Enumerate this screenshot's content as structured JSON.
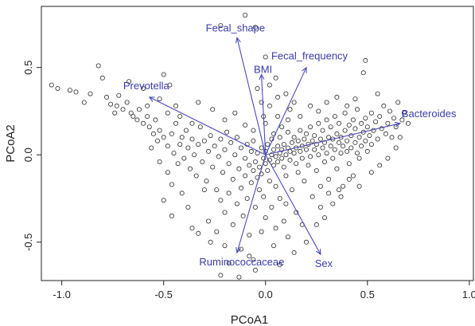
{
  "chart_data": {
    "type": "scatter",
    "title": "",
    "xlabel": "PCoA1",
    "ylabel": "PCoA2",
    "xlim": [
      -1.1,
      1.02
    ],
    "ylim": [
      -0.72,
      0.85
    ],
    "x_ticks": [
      "-1.0",
      "-0.5",
      "0.0",
      "0.5",
      "1.0"
    ],
    "y_ticks": [
      "-0.5",
      "0.0",
      "0.5"
    ],
    "grid": false,
    "colors": {
      "points": "#2b2b2b",
      "arrows": "#4a4ab8",
      "labels": "#3a3aa8"
    },
    "arrows": [
      {
        "name": "Fecal_shape",
        "x": -0.14,
        "y": 0.67
      },
      {
        "name": "BMI",
        "x": -0.02,
        "y": 0.46
      },
      {
        "name": "Fecal_frequency",
        "x": 0.2,
        "y": 0.5
      },
      {
        "name": "Prevotella",
        "x": -0.57,
        "y": 0.33
      },
      {
        "name": "Bacteroides",
        "x": 0.66,
        "y": 0.18
      },
      {
        "name": "Ruminococcaceae",
        "x": -0.14,
        "y": -0.56
      },
      {
        "name": "Sex",
        "x": 0.27,
        "y": -0.57
      }
    ],
    "points": [
      [
        -1.05,
        0.4
      ],
      [
        -1.02,
        0.38
      ],
      [
        -0.96,
        0.37
      ],
      [
        -0.93,
        0.36
      ],
      [
        -0.89,
        0.3
      ],
      [
        -0.86,
        0.35
      ],
      [
        -0.82,
        0.51
      ],
      [
        -0.8,
        0.44
      ],
      [
        -0.78,
        0.33
      ],
      [
        -0.76,
        0.29
      ],
      [
        -0.73,
        0.28
      ],
      [
        -0.72,
        0.34
      ],
      [
        -0.7,
        0.26
      ],
      [
        -0.68,
        0.3
      ],
      [
        -0.66,
        0.24
      ],
      [
        -0.65,
        0.22
      ],
      [
        -0.63,
        0.2
      ],
      [
        -0.62,
        0.26
      ],
      [
        -0.6,
        0.18
      ],
      [
        -0.58,
        0.22
      ],
      [
        -0.57,
        0.16
      ],
      [
        -0.55,
        0.12
      ],
      [
        -0.54,
        0.2
      ],
      [
        -0.53,
        0.08
      ],
      [
        -0.52,
        0.14
      ],
      [
        -0.5,
        0.1
      ],
      [
        -0.5,
        0.46
      ],
      [
        -0.48,
        0.05
      ],
      [
        -0.47,
        0.4
      ],
      [
        -0.46,
        0.12
      ],
      [
        -0.45,
        0.01
      ],
      [
        -0.44,
        0.18
      ],
      [
        -0.43,
        -0.05
      ],
      [
        -0.42,
        0.06
      ],
      [
        -0.41,
        0.1
      ],
      [
        -0.4,
        -0.02
      ],
      [
        -0.39,
        0.14
      ],
      [
        -0.38,
        0.04
      ],
      [
        -0.37,
        -0.08
      ],
      [
        -0.36,
        0.09
      ],
      [
        -0.35,
        0.0
      ],
      [
        -0.34,
        -0.12
      ],
      [
        -0.33,
        0.06
      ],
      [
        -0.32,
        0.16
      ],
      [
        -0.31,
        -0.04
      ],
      [
        -0.3,
        0.08
      ],
      [
        -0.29,
        -0.15
      ],
      [
        -0.28,
        0.02
      ],
      [
        -0.27,
        0.11
      ],
      [
        -0.26,
        -0.07
      ],
      [
        -0.25,
        0.05
      ],
      [
        -0.24,
        -0.2
      ],
      [
        -0.23,
        -0.01
      ],
      [
        -0.22,
        0.09
      ],
      [
        -0.22,
        -0.26
      ],
      [
        -0.21,
        -0.1
      ],
      [
        -0.2,
        0.03
      ],
      [
        -0.2,
        -0.33
      ],
      [
        -0.19,
        0.13
      ],
      [
        -0.18,
        -0.05
      ],
      [
        -0.18,
        -0.22
      ],
      [
        -0.17,
        0.07
      ],
      [
        -0.16,
        -0.14
      ],
      [
        -0.16,
        -0.4
      ],
      [
        -0.15,
        0.0
      ],
      [
        -0.14,
        -0.28
      ],
      [
        -0.14,
        0.1
      ],
      [
        -0.13,
        -0.08
      ],
      [
        -0.12,
        -0.19
      ],
      [
        -0.12,
        0.04
      ],
      [
        -0.11,
        -0.35
      ],
      [
        -0.1,
        -0.02
      ],
      [
        -0.1,
        -0.12
      ],
      [
        -0.09,
        0.06
      ],
      [
        -0.09,
        -0.25
      ],
      [
        -0.08,
        -0.06
      ],
      [
        -0.08,
        -0.46
      ],
      [
        -0.07,
        0.02
      ],
      [
        -0.07,
        -0.16
      ],
      [
        -0.06,
        -0.09
      ],
      [
        -0.06,
        0.08
      ],
      [
        -0.05,
        -0.3
      ],
      [
        -0.05,
        -0.04
      ],
      [
        -0.04,
        -0.13
      ],
      [
        -0.04,
        0.01
      ],
      [
        -0.03,
        -0.2
      ],
      [
        -0.03,
        -0.07
      ],
      [
        -0.02,
        0.04
      ],
      [
        -0.02,
        -0.11
      ],
      [
        -0.01,
        -0.02
      ],
      [
        -0.01,
        -0.24
      ],
      [
        0.0,
        -0.05
      ],
      [
        0.0,
        0.02
      ],
      [
        0.01,
        -0.09
      ],
      [
        0.01,
        0.06
      ],
      [
        0.02,
        -0.03
      ],
      [
        0.02,
        -0.15
      ],
      [
        0.03,
        0.0
      ],
      [
        0.03,
        0.09
      ],
      [
        0.04,
        -0.06
      ],
      [
        0.04,
        0.03
      ],
      [
        0.05,
        -0.01
      ],
      [
        0.05,
        -0.18
      ],
      [
        0.06,
        0.05
      ],
      [
        0.06,
        -0.04
      ],
      [
        0.07,
        0.01
      ],
      [
        0.07,
        0.1
      ],
      [
        0.08,
        -0.02
      ],
      [
        0.08,
        0.03
      ],
      [
        0.09,
        -0.07
      ],
      [
        0.09,
        0.06
      ],
      [
        0.1,
        0.0
      ],
      [
        0.1,
        -0.12
      ],
      [
        0.11,
        0.04
      ],
      [
        0.11,
        0.13
      ],
      [
        0.12,
        -0.03
      ],
      [
        0.12,
        0.02
      ],
      [
        0.13,
        0.07
      ],
      [
        0.13,
        -0.2
      ],
      [
        0.14,
        0.01
      ],
      [
        0.14,
        0.1
      ],
      [
        0.15,
        -0.05
      ],
      [
        0.15,
        0.04
      ],
      [
        0.16,
        0.08
      ],
      [
        0.16,
        -0.1
      ],
      [
        0.17,
        0.02
      ],
      [
        0.17,
        0.14
      ],
      [
        0.18,
        -0.02
      ],
      [
        0.18,
        0.05
      ],
      [
        0.19,
        0.09
      ],
      [
        0.19,
        -0.15
      ],
      [
        0.2,
        0.03
      ],
      [
        0.2,
        0.12
      ],
      [
        0.21,
        -0.06
      ],
      [
        0.21,
        0.06
      ],
      [
        0.22,
        0.16
      ],
      [
        0.22,
        -0.01
      ],
      [
        0.23,
        0.08
      ],
      [
        0.23,
        -0.24
      ],
      [
        0.24,
        0.03
      ],
      [
        0.24,
        0.11
      ],
      [
        0.25,
        -0.09
      ],
      [
        0.25,
        0.06
      ],
      [
        0.26,
        0.18
      ],
      [
        0.26,
        0.0
      ],
      [
        0.27,
        0.09
      ],
      [
        0.27,
        -0.3
      ],
      [
        0.28,
        0.04
      ],
      [
        0.28,
        0.14
      ],
      [
        0.29,
        -0.04
      ],
      [
        0.29,
        0.07
      ],
      [
        0.3,
        0.2
      ],
      [
        0.3,
        0.01
      ],
      [
        0.31,
        0.1
      ],
      [
        0.31,
        -0.14
      ],
      [
        0.32,
        0.05
      ],
      [
        0.32,
        0.16
      ],
      [
        0.33,
        -0.02
      ],
      [
        0.33,
        0.09
      ],
      [
        0.34,
        0.22
      ],
      [
        0.34,
        0.03
      ],
      [
        0.35,
        0.12
      ],
      [
        0.35,
        -0.08
      ],
      [
        0.36,
        0.07
      ],
      [
        0.36,
        0.18
      ],
      [
        0.37,
        0.01
      ],
      [
        0.37,
        0.1
      ],
      [
        0.38,
        -0.18
      ],
      [
        0.38,
        0.05
      ],
      [
        0.39,
        0.14
      ],
      [
        0.39,
        0.24
      ],
      [
        0.4,
        0.02
      ],
      [
        0.4,
        0.08
      ],
      [
        0.41,
        0.17
      ],
      [
        0.41,
        -0.05
      ],
      [
        0.42,
        0.11
      ],
      [
        0.42,
        0.04
      ],
      [
        0.43,
        0.2
      ],
      [
        0.43,
        -0.12
      ],
      [
        0.44,
        0.07
      ],
      [
        0.44,
        0.15
      ],
      [
        0.45,
        0.01
      ],
      [
        0.45,
        0.26
      ],
      [
        0.46,
        0.1
      ],
      [
        0.46,
        -0.02
      ],
      [
        0.47,
        0.18
      ],
      [
        0.47,
        0.05
      ],
      [
        0.48,
        0.13
      ],
      [
        0.49,
        0.21
      ],
      [
        0.49,
        0.08
      ],
      [
        0.5,
        0.02
      ],
      [
        0.5,
        0.16
      ],
      [
        0.51,
        0.11
      ],
      [
        0.52,
        0.24
      ],
      [
        0.52,
        0.06
      ],
      [
        0.53,
        0.14
      ],
      [
        0.54,
        0.19
      ],
      [
        0.55,
        0.09
      ],
      [
        0.56,
        0.22
      ],
      [
        0.57,
        0.15
      ],
      [
        0.58,
        0.28
      ],
      [
        0.59,
        0.12
      ],
      [
        0.6,
        0.18
      ],
      [
        0.61,
        0.25
      ],
      [
        0.62,
        0.1
      ],
      [
        0.63,
        0.21
      ],
      [
        0.64,
        0.16
      ],
      [
        0.65,
        0.3
      ],
      [
        0.67,
        0.2
      ],
      [
        0.68,
        0.24
      ],
      [
        0.7,
        0.18
      ],
      [
        0.48,
        0.47
      ],
      [
        0.49,
        0.54
      ],
      [
        -0.1,
        0.8
      ],
      [
        -0.05,
        0.73
      ],
      [
        -0.22,
        0.74
      ],
      [
        0.0,
        0.56
      ],
      [
        0.05,
        0.44
      ],
      [
        -0.02,
        0.3
      ],
      [
        0.02,
        0.28
      ],
      [
        0.0,
        0.18
      ],
      [
        0.04,
        0.12
      ],
      [
        -0.01,
        0.22
      ],
      [
        0.1,
        0.35
      ],
      [
        0.14,
        0.3
      ],
      [
        -0.28,
        -0.38
      ],
      [
        -0.3,
        -0.2
      ],
      [
        -0.46,
        -0.35
      ],
      [
        -0.41,
        -0.22
      ],
      [
        -0.38,
        -0.3
      ],
      [
        -0.24,
        -0.44
      ],
      [
        -0.2,
        -0.52
      ],
      [
        -0.18,
        -0.62
      ],
      [
        -0.06,
        -0.6
      ],
      [
        0.04,
        -0.52
      ],
      [
        0.11,
        -0.47
      ],
      [
        0.18,
        -0.4
      ],
      [
        0.15,
        -0.33
      ],
      [
        0.09,
        -0.38
      ],
      [
        0.05,
        -0.42
      ],
      [
        -0.22,
        -0.69
      ],
      [
        -0.13,
        -0.7
      ],
      [
        0.07,
        -0.63
      ],
      [
        0.2,
        -0.5
      ],
      [
        0.14,
        -0.56
      ],
      [
        -0.05,
        -0.66
      ],
      [
        0.25,
        -0.4
      ],
      [
        0.29,
        -0.36
      ],
      [
        0.33,
        -0.28
      ],
      [
        0.37,
        -0.24
      ],
      [
        -0.33,
        -0.45
      ],
      [
        -0.27,
        -0.5
      ],
      [
        -0.36,
        -0.42
      ],
      [
        -0.12,
        -0.54
      ],
      [
        -0.08,
        -0.58
      ],
      [
        0.0,
        -0.36
      ],
      [
        0.03,
        -0.3
      ],
      [
        -0.02,
        -0.44
      ],
      [
        0.07,
        -0.25
      ],
      [
        0.1,
        -0.28
      ],
      [
        -0.44,
        0.28
      ],
      [
        -0.52,
        0.32
      ],
      [
        -0.6,
        0.38
      ],
      [
        -0.67,
        0.42
      ],
      [
        -0.74,
        0.24
      ],
      [
        -0.58,
        0.28
      ],
      [
        -0.48,
        0.24
      ],
      [
        -0.42,
        0.22
      ],
      [
        -0.36,
        0.18
      ],
      [
        -0.33,
        0.3
      ],
      [
        -0.26,
        0.26
      ],
      [
        -0.2,
        0.2
      ],
      [
        -0.15,
        0.24
      ],
      [
        -0.1,
        0.17
      ],
      [
        -0.06,
        0.14
      ],
      [
        0.06,
        0.22
      ],
      [
        0.12,
        0.26
      ],
      [
        0.17,
        0.22
      ],
      [
        0.22,
        0.28
      ],
      [
        0.26,
        0.25
      ],
      [
        0.3,
        0.3
      ],
      [
        0.35,
        0.33
      ],
      [
        0.4,
        0.28
      ],
      [
        0.44,
        0.32
      ],
      [
        0.55,
        0.35
      ],
      [
        0.41,
        -0.14
      ],
      [
        0.46,
        -0.18
      ],
      [
        0.52,
        -0.1
      ],
      [
        0.56,
        -0.06
      ],
      [
        0.6,
        -0.02
      ],
      [
        0.64,
        0.04
      ],
      [
        0.66,
        0.1
      ],
      [
        0.36,
        -0.2
      ],
      [
        0.31,
        -0.22
      ],
      [
        0.27,
        -0.18
      ],
      [
        -0.48,
        -0.1
      ],
      [
        -0.52,
        -0.04
      ],
      [
        -0.56,
        0.04
      ],
      [
        -0.46,
        -0.17
      ],
      [
        -0.5,
        -0.26
      ],
      [
        0.02,
        0.4
      ],
      [
        -0.04,
        0.38
      ],
      [
        0.06,
        0.33
      ],
      [
        0.08,
        0.16
      ],
      [
        0.11,
        0.2
      ]
    ]
  }
}
